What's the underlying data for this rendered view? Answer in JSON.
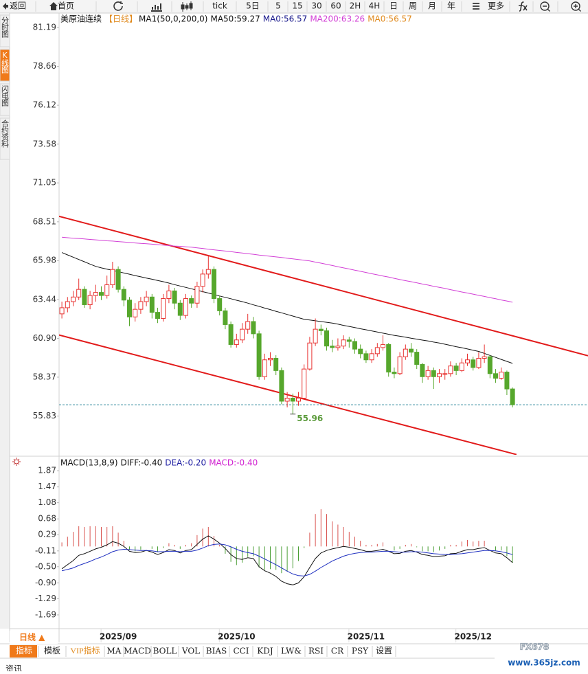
{
  "toolbar": [
    "返回",
    "首页",
    "tick",
    "5日",
    "5",
    "15",
    "30",
    "60",
    "2H",
    "4H",
    "日",
    "周",
    "月",
    "年",
    "更多"
  ],
  "sidebar": [
    "分时图",
    "K线图",
    "闪电图",
    "合约资料"
  ],
  "chart_data": [
    {
      "type": "candlestick",
      "title": "美原油连续",
      "period": "【日线】",
      "legend": [
        {
          "label": "MA1(50,0,200,0)",
          "color": "#111111"
        },
        {
          "label": "MA50:59.27",
          "color": "#111111"
        },
        {
          "label": "MA0:56.57",
          "color": "#1a1a8c"
        },
        {
          "label": "MA200:63.26",
          "color": "#d23fd6"
        },
        {
          "label": "MA0:56.57",
          "color": "#e08a1e"
        }
      ],
      "up_color": "#e8312f",
      "down_color": "#56a72c",
      "last_price_color": "#3a8fa0",
      "open": [
        62.5,
        62.9,
        63.3,
        63.6,
        64.1,
        63.1,
        63.7,
        63.9,
        63.7,
        64.4,
        65.4,
        64.1,
        63.4,
        62.3,
        62.8,
        63.3,
        63.6,
        62.6,
        62.2,
        63.5,
        64.0,
        63.2,
        62.4,
        63.5,
        63.2,
        64.3,
        65.1,
        65.4,
        63.5,
        62.7,
        61.8,
        60.5,
        60.8,
        61.5,
        62.0,
        61.2,
        58.4,
        59.5,
        59.6,
        58.8,
        56.8,
        57.0,
        56.8,
        57.0,
        58.9,
        60.6,
        61.5,
        61.4,
        60.4,
        60.3,
        60.4,
        60.8,
        60.7,
        60.2,
        59.9,
        59.5,
        59.9,
        60.3,
        60.5,
        58.7,
        58.6,
        59.7,
        60.2,
        60.0,
        59.2,
        58.4,
        58.8,
        58.4,
        58.6,
        58.6,
        59.1,
        58.8,
        59.3,
        59.5,
        59.0,
        59.6,
        59.7,
        58.6,
        58.3,
        58.7,
        57.6
      ],
      "high": [
        63.3,
        63.6,
        64.0,
        64.8,
        64.3,
        64.0,
        64.4,
        64.3,
        65.0,
        65.9,
        65.6,
        64.3,
        63.6,
        63.2,
        63.6,
        64.0,
        63.8,
        62.9,
        63.8,
        64.4,
        64.2,
        63.4,
        63.8,
        63.7,
        64.6,
        65.4,
        66.3,
        65.6,
        63.7,
        62.9,
        62.0,
        61.2,
        61.9,
        62.5,
        62.3,
        61.4,
        59.9,
        60.0,
        59.8,
        59.0,
        57.4,
        57.3,
        57.4,
        59.2,
        61.0,
        62.2,
        61.8,
        61.6,
        60.8,
        60.9,
        61.1,
        61.0,
        60.9,
        60.5,
        60.1,
        60.2,
        60.6,
        61.1,
        60.6,
        59.0,
        60.0,
        60.5,
        60.6,
        60.2,
        59.3,
        59.1,
        59.0,
        58.9,
        58.9,
        59.4,
        59.3,
        59.6,
        59.9,
        59.7,
        60.0,
        60.5,
        59.8,
        58.9,
        59.0,
        58.8,
        57.7
      ],
      "low": [
        62.2,
        62.6,
        63.0,
        63.4,
        62.9,
        62.8,
        63.3,
        63.4,
        63.5,
        64.2,
        63.9,
        63.0,
        61.7,
        62.0,
        62.5,
        63.0,
        62.2,
        61.9,
        62.0,
        63.2,
        62.8,
        62.1,
        62.2,
        62.9,
        62.9,
        63.9,
        64.8,
        63.2,
        62.4,
        61.5,
        60.3,
        60.3,
        60.6,
        61.2,
        60.9,
        58.2,
        58.2,
        59.1,
        58.5,
        56.6,
        56.4,
        55.96,
        56.5,
        56.9,
        58.8,
        60.4,
        61.1,
        60.1,
        60.0,
        60.1,
        60.2,
        60.3,
        59.9,
        59.6,
        59.3,
        59.3,
        59.7,
        60.1,
        58.4,
        58.3,
        58.5,
        59.5,
        59.7,
        58.9,
        58.0,
        58.2,
        57.6,
        58.0,
        58.2,
        58.4,
        58.5,
        58.7,
        59.1,
        58.8,
        58.9,
        59.3,
        58.3,
        58.0,
        58.2,
        57.2,
        56.4
      ],
      "close": [
        62.9,
        63.3,
        63.6,
        64.1,
        63.1,
        63.7,
        63.9,
        63.7,
        64.4,
        65.4,
        64.1,
        63.4,
        62.3,
        62.8,
        63.3,
        63.6,
        62.6,
        62.2,
        63.5,
        64.0,
        63.2,
        62.4,
        63.5,
        63.2,
        64.3,
        65.1,
        65.4,
        63.5,
        62.7,
        61.8,
        60.5,
        60.8,
        61.5,
        62.0,
        61.2,
        58.4,
        59.5,
        59.6,
        58.8,
        56.8,
        57.0,
        56.8,
        57.0,
        58.9,
        60.6,
        61.5,
        61.4,
        60.4,
        60.3,
        60.4,
        60.8,
        60.7,
        60.2,
        59.9,
        59.5,
        59.9,
        60.3,
        60.5,
        58.7,
        58.6,
        59.7,
        60.2,
        60.0,
        59.2,
        58.4,
        58.8,
        58.4,
        58.6,
        58.6,
        59.1,
        58.8,
        59.3,
        59.5,
        59.0,
        59.6,
        59.7,
        58.6,
        58.3,
        58.7,
        57.6,
        56.57
      ],
      "series": [
        {
          "color": "#111111",
          "values": [
            66.5,
            66.35,
            66.2,
            66.05,
            65.9,
            65.75,
            65.6,
            65.5,
            65.42,
            65.34,
            65.26,
            65.17,
            65.09,
            65.0,
            64.92,
            64.84,
            64.76,
            64.68,
            64.6,
            64.51,
            64.41,
            64.32,
            64.23,
            64.14,
            64.04,
            63.95,
            63.86,
            63.76,
            63.67,
            63.58,
            63.49,
            63.39,
            63.3,
            63.2,
            63.09,
            62.99,
            62.88,
            62.78,
            62.67,
            62.57,
            62.46,
            62.36,
            62.25,
            62.15,
            62.1,
            62.05,
            62.0,
            61.95,
            61.9,
            61.83,
            61.75,
            61.68,
            61.61,
            61.53,
            61.46,
            61.39,
            61.32,
            61.24,
            61.17,
            61.1,
            61.04,
            60.98,
            60.91,
            60.85,
            60.79,
            60.73,
            60.66,
            60.6,
            60.52,
            60.44,
            60.36,
            60.29,
            60.21,
            60.13,
            60.05,
            59.92,
            59.79,
            59.66,
            59.53,
            59.4,
            59.27
          ]
        },
        {
          "color": "#d23fd6",
          "values": [
            67.5,
            67.47,
            67.44,
            67.42,
            67.39,
            67.36,
            67.33,
            67.3,
            67.27,
            67.25,
            67.22,
            67.19,
            67.16,
            67.13,
            67.1,
            67.08,
            67.05,
            67.02,
            66.99,
            66.96,
            66.93,
            66.91,
            66.88,
            66.85,
            66.81,
            66.77,
            66.72,
            66.68,
            66.64,
            66.6,
            66.56,
            66.51,
            66.47,
            66.43,
            66.39,
            66.34,
            66.3,
            66.26,
            66.22,
            66.18,
            66.13,
            66.09,
            66.05,
            66.0,
            65.96,
            65.88,
            65.81,
            65.73,
            65.66,
            65.58,
            65.5,
            65.43,
            65.35,
            65.28,
            65.2,
            65.12,
            65.05,
            64.97,
            64.9,
            64.82,
            64.74,
            64.67,
            64.6,
            64.53,
            64.45,
            64.38,
            64.3,
            64.23,
            64.16,
            64.08,
            64.01,
            63.93,
            63.86,
            63.79,
            63.71,
            63.64,
            63.56,
            63.49,
            63.41,
            63.34,
            63.26
          ]
        }
      ],
      "trend_lines": [
        {
          "color": "#e21b1b",
          "start": [
            -0.5,
            68.87
          ],
          "end": [
            93.4,
            59.77
          ]
        },
        {
          "color": "#e21b1b",
          "start": [
            -0.5,
            61.12
          ],
          "end": [
            80.7,
            53.32
          ]
        }
      ],
      "xlim": [
        -0.5,
        93.4
      ],
      "ylim": [
        53.3,
        82.09
      ],
      "yticks": [
        81.19,
        78.66,
        76.12,
        73.58,
        71.05,
        68.51,
        65.98,
        63.44,
        {
          "value": 60.9,
          "label": "60.90"
        },
        58.37,
        55.83
      ],
      "xticks": [
        {
          "value": 10,
          "label": "2025/09"
        },
        {
          "value": 31,
          "label": "2025/10"
        },
        {
          "value": 54,
          "label": "2025/11"
        },
        {
          "value": 73,
          "label": "2025/12"
        }
      ]
    },
    {
      "type": "macd",
      "title": "MACD(13,8,9)",
      "legend": [
        {
          "label": "DIFF:-0.40",
          "color": "#111111"
        },
        {
          "label": "DEA:-0.20",
          "color": "#1a1aa0"
        },
        {
          "label": "MACD:-0.40",
          "color": "#d020d0"
        }
      ],
      "up_color": "#d9534f",
      "down_color": "#4a9e35",
      "histogram": [
        0.1,
        0.24,
        0.36,
        0.5,
        0.48,
        0.5,
        0.5,
        0.48,
        0.48,
        0.5,
        0.34,
        0.14,
        -0.08,
        -0.12,
        -0.08,
        0.0,
        -0.06,
        -0.14,
        -0.04,
        0.08,
        0.04,
        -0.06,
        0.04,
        0.08,
        0.28,
        0.44,
        0.48,
        0.26,
        0.04,
        -0.18,
        -0.38,
        -0.46,
        -0.4,
        -0.26,
        -0.24,
        -0.52,
        -0.58,
        -0.56,
        -0.58,
        -0.66,
        -0.62,
        -0.54,
        -0.36,
        -0.04,
        0.34,
        0.8,
        0.92,
        0.8,
        0.62,
        0.54,
        0.48,
        0.36,
        0.24,
        0.14,
        0.04,
        0.04,
        0.06,
        0.1,
        0.0,
        -0.1,
        -0.06,
        0.04,
        0.06,
        -0.02,
        -0.12,
        -0.12,
        -0.14,
        -0.1,
        -0.06,
        0.04,
        0.04,
        0.12,
        0.16,
        0.12,
        0.14,
        0.14,
        0.0,
        -0.1,
        -0.1,
        -0.24,
        -0.4
      ],
      "series": [
        {
          "color": "#111111",
          "values": [
            -0.55,
            -0.45,
            -0.35,
            -0.22,
            -0.18,
            -0.12,
            -0.06,
            -0.02,
            0.04,
            0.12,
            0.08,
            0.0,
            -0.12,
            -0.15,
            -0.14,
            -0.1,
            -0.14,
            -0.2,
            -0.15,
            -0.08,
            -0.1,
            -0.16,
            -0.1,
            -0.08,
            0.05,
            0.18,
            0.26,
            0.18,
            0.08,
            -0.05,
            -0.2,
            -0.3,
            -0.32,
            -0.28,
            -0.3,
            -0.5,
            -0.6,
            -0.66,
            -0.74,
            -0.86,
            -0.92,
            -0.95,
            -0.9,
            -0.75,
            -0.52,
            -0.3,
            -0.16,
            -0.1,
            -0.06,
            -0.03,
            0.0,
            -0.02,
            -0.05,
            -0.08,
            -0.12,
            -0.12,
            -0.1,
            -0.07,
            -0.12,
            -0.18,
            -0.17,
            -0.12,
            -0.1,
            -0.14,
            -0.2,
            -0.22,
            -0.25,
            -0.24,
            -0.23,
            -0.18,
            -0.17,
            -0.12,
            -0.08,
            -0.08,
            -0.05,
            -0.03,
            -0.1,
            -0.16,
            -0.18,
            -0.28,
            -0.4
          ]
        },
        {
          "color": "#1e2fc0",
          "values": [
            -0.6,
            -0.57,
            -0.53,
            -0.47,
            -0.42,
            -0.37,
            -0.31,
            -0.26,
            -0.2,
            -0.13,
            -0.09,
            -0.07,
            -0.08,
            -0.09,
            -0.1,
            -0.1,
            -0.11,
            -0.13,
            -0.13,
            -0.12,
            -0.12,
            -0.13,
            -0.12,
            -0.12,
            -0.09,
            -0.04,
            0.02,
            0.05,
            0.06,
            0.04,
            -0.01,
            -0.07,
            -0.12,
            -0.15,
            -0.18,
            -0.24,
            -0.31,
            -0.38,
            -0.45,
            -0.53,
            -0.61,
            -0.68,
            -0.72,
            -0.73,
            -0.69,
            -0.61,
            -0.52,
            -0.44,
            -0.36,
            -0.3,
            -0.24,
            -0.2,
            -0.17,
            -0.15,
            -0.14,
            -0.14,
            -0.13,
            -0.12,
            -0.12,
            -0.13,
            -0.14,
            -0.14,
            -0.13,
            -0.13,
            -0.14,
            -0.16,
            -0.18,
            -0.19,
            -0.2,
            -0.2,
            -0.19,
            -0.18,
            -0.16,
            -0.14,
            -0.12,
            -0.1,
            -0.1,
            -0.11,
            -0.13,
            -0.16,
            -0.2
          ]
        }
      ],
      "ylim": [
        -2.03,
        2.16
      ],
      "yticks": [
        1.87,
        1.47,
        1.08,
        0.68,
        0.29,
        -0.11,
        {
          "value": -0.5,
          "label": "-0.50"
        },
        {
          "value": -0.9,
          "label": "-0.90"
        },
        -1.29,
        -1.69
      ]
    }
  ],
  "period_selector": "日线 ▲",
  "tabs": [
    "指标",
    "模板",
    "VIP指标",
    "MA",
    "MACD",
    "BOLL",
    "VOL",
    "BIAS",
    "CCI",
    "KDJ",
    "LW&",
    "RSI",
    "CR",
    "PSY",
    "设置"
  ],
  "footer": "资讯",
  "watermark": [
    "FX678",
    "www.365jz.com"
  ]
}
